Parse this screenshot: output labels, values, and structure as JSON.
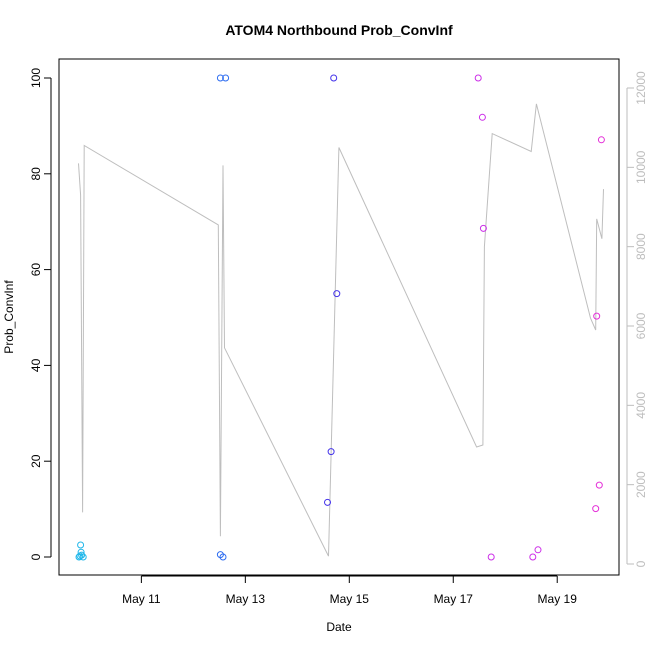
{
  "chart_data": {
    "type": "scatter",
    "title": "ATOM4 Northbound Prob_ConvInf",
    "xlabel": "Date",
    "ylabel": "Prob_ConvInf",
    "x_ticks": [
      "May 11",
      "May 13",
      "May 15",
      "May 17",
      "May 19"
    ],
    "y_ticks": [
      "0",
      "20",
      "40",
      "60",
      "80",
      "100"
    ],
    "y2_ticks": [
      "0",
      "2000",
      "4000",
      "6000",
      "8000",
      "10000",
      "12000"
    ],
    "xlim_days": [
      9.8,
      19.9
    ],
    "ylim": [
      0,
      100
    ],
    "y2lim": [
      0,
      12000
    ],
    "grid": false,
    "line_color": "#bebebe",
    "right_axis_color": "#bdbdbd",
    "series": [
      {
        "color": "#1fb7ea",
        "points": [
          {
            "x": 9.83,
            "y": 2.5
          },
          {
            "x": 9.84,
            "y": 1.0
          },
          {
            "x": 9.85,
            "y": 0.4
          },
          {
            "x": 9.82,
            "y": 0.2
          },
          {
            "x": 9.88,
            "y": 0.0
          },
          {
            "x": 9.8,
            "y": 0.0
          }
        ]
      },
      {
        "color": "#2e6df0",
        "points": [
          {
            "x": 12.52,
            "y": 100
          },
          {
            "x": 12.62,
            "y": 100
          },
          {
            "x": 12.52,
            "y": 0.5
          },
          {
            "x": 12.57,
            "y": 0.0
          }
        ]
      },
      {
        "color": "#4433ea",
        "points": [
          {
            "x": 14.7,
            "y": 100
          },
          {
            "x": 14.76,
            "y": 55.0
          },
          {
            "x": 14.65,
            "y": 22.0
          },
          {
            "x": 14.58,
            "y": 11.4
          }
        ]
      },
      {
        "color": "#cc2ee8",
        "points": [
          {
            "x": 17.48,
            "y": 100
          },
          {
            "x": 17.56,
            "y": 91.8
          },
          {
            "x": 17.58,
            "y": 68.6
          },
          {
            "x": 17.73,
            "y": 0.0
          },
          {
            "x": 18.53,
            "y": 0.0
          },
          {
            "x": 18.63,
            "y": 1.5
          }
        ]
      },
      {
        "color": "#e430d8",
        "points": [
          {
            "x": 19.76,
            "y": 50.3
          },
          {
            "x": 19.85,
            "y": 87.1
          },
          {
            "x": 19.81,
            "y": 15.0
          },
          {
            "x": 19.74,
            "y": 10.1
          }
        ]
      }
    ],
    "line_series": {
      "axis": "right",
      "points": [
        {
          "x": 9.79,
          "y": 10100
        },
        {
          "x": 9.83,
          "y": 9300
        },
        {
          "x": 9.87,
          "y": 1300
        },
        {
          "x": 9.9,
          "y": 10550
        },
        {
          "x": 12.48,
          "y": 8550
        },
        {
          "x": 12.52,
          "y": 700
        },
        {
          "x": 12.57,
          "y": 10050
        },
        {
          "x": 12.6,
          "y": 5450
        },
        {
          "x": 14.6,
          "y": 200
        },
        {
          "x": 14.8,
          "y": 10500
        },
        {
          "x": 17.45,
          "y": 2950
        },
        {
          "x": 17.57,
          "y": 3000
        },
        {
          "x": 17.6,
          "y": 8000
        },
        {
          "x": 17.75,
          "y": 10850
        },
        {
          "x": 18.5,
          "y": 10400
        },
        {
          "x": 18.6,
          "y": 11600
        },
        {
          "x": 19.64,
          "y": 6200
        },
        {
          "x": 19.74,
          "y": 5900
        },
        {
          "x": 19.76,
          "y": 8700
        },
        {
          "x": 19.86,
          "y": 8200
        },
        {
          "x": 19.89,
          "y": 9450
        }
      ]
    }
  }
}
